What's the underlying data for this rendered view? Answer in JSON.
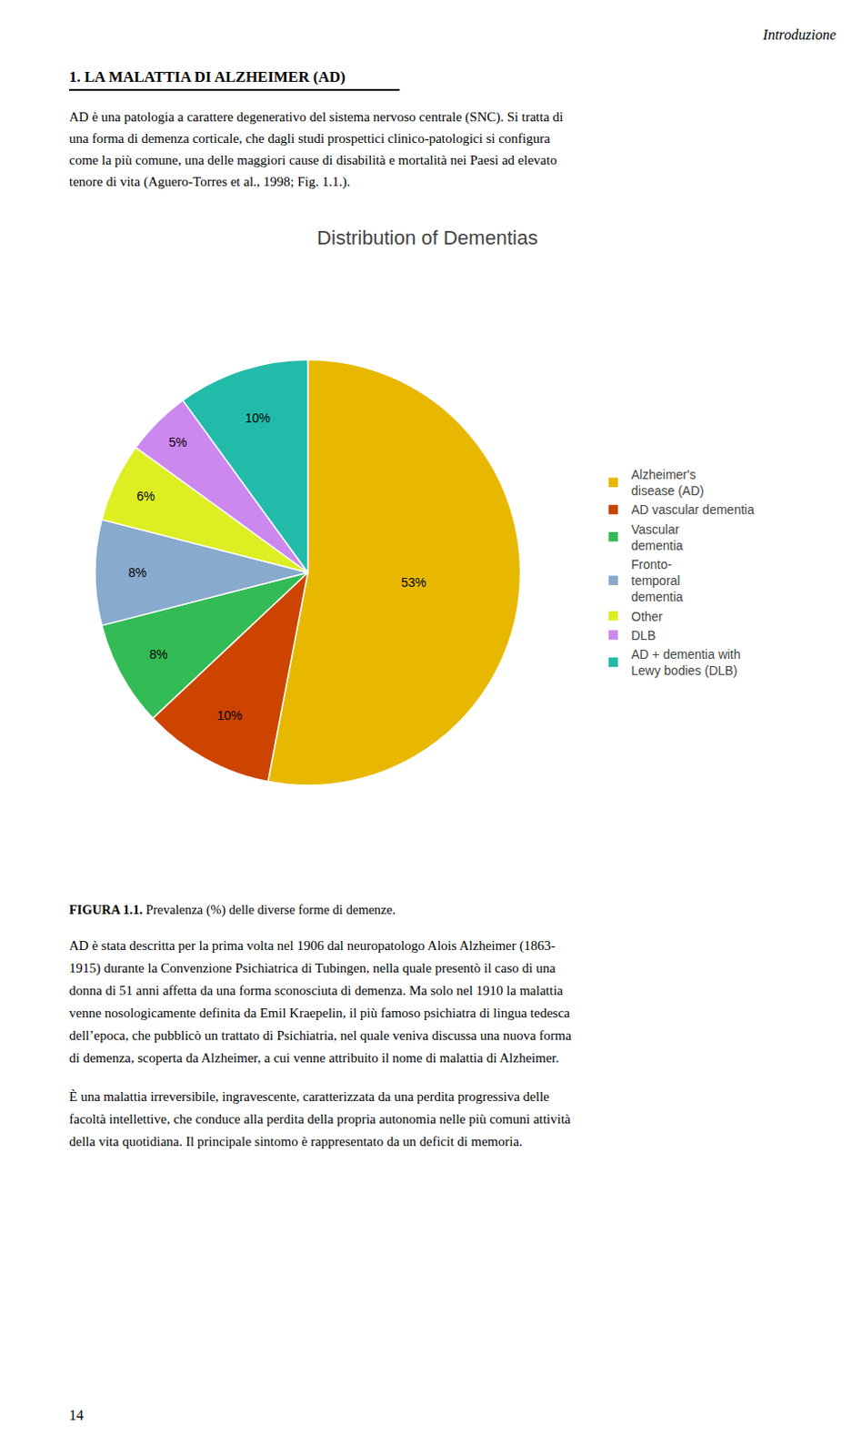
{
  "chart_data": {
    "type": "pie",
    "title": "Distribution of Dementias",
    "categories": [
      "Alzheimer's\ndisease (AD)",
      "AD vascular dementia",
      "Vascular\ndementia",
      "Fronto-\ntemporal\ndementia",
      "Other",
      "DLB",
      "AD + dementia with\nLewy bodies (DLB)"
    ],
    "values": [
      53,
      10,
      8,
      8,
      6,
      5,
      10
    ],
    "value_labels": [
      "53%",
      "10%",
      "8%",
      "8%",
      "6%",
      "5%",
      "10%"
    ],
    "colors": [
      "#e8b800",
      "#cc4400",
      "#33bb55",
      "#88aacc",
      "#ddee22",
      "#cc88ee",
      "#22bbaa"
    ],
    "data_labels": true,
    "legend": "right",
    "annotations": [
      "Introduzione",
      "1. LA MALATTIA DI ALZHEIMER (AD)",
      "AD è una patologia a carattere degenerativo del sistema nervoso centrale (SNC). Si tratta di\nuna forma di demenza corticale, che dagli studi prospettici clinico-patologici si configura\ncome la più comune, una delle maggiori cause di disabilità e mortalità nei Paesi ad elevato\ntenore di vita (Aguero-Torres et al., 1998; Fig. 1.1.).",
      "FIGURA 1.1.",
      "Prevalenza (%) delle diverse forme di demenze.",
      "AD è stata descritta per la prima volta nel 1906 dal neuropatologo Alois Alzheimer (1863-\n1915) durante la Convenzione Psichiatrica di Tubingen, nella quale presentò il caso di una\ndonna di 51 anni affetta da una forma sconosciuta di demenza. Ma solo nel 1910 la malattia\nvenne nosologicamente definita da Emil Kraepelin, il più famoso psichiatra di lingua tedesca\ndell’epoca, che pubblicò un trattato di Psichiatria, nel quale veniva discussa una nuova forma\ndi demenza, scoperta da Alzheimer, a cui venne attribuito il nome di malattia di Alzheimer.",
      "È una malattia irreversibile, ingravescente, caratterizzata da una perdita progressiva delle\nfacoltà intellettive, che conduce alla perdita della propria autonomia nelle più comuni attività\ndella vita quotidiana. Il principale sintomo è rappresentato da un deficit di memoria.",
      "14"
    ]
  }
}
